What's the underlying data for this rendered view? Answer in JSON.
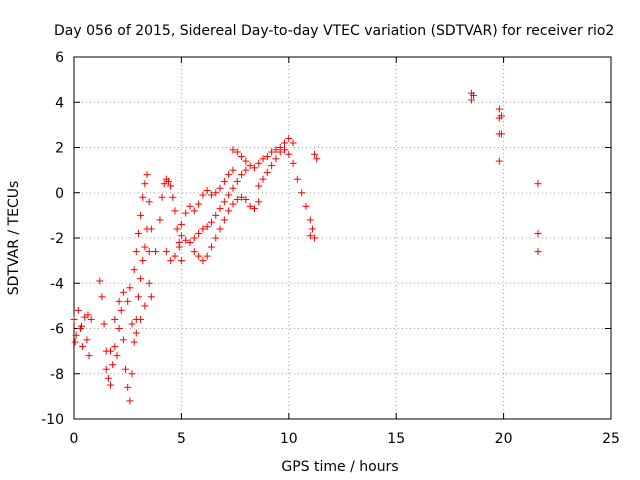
{
  "chart_data": {
    "type": "scatter",
    "title": "Day 056 of 2015, Sidereal Day-to-day VTEC variation (SDTVAR) for receiver rio2",
    "xlabel": "GPS time / hours",
    "ylabel": "SDTVAR / TECUs",
    "xlim": [
      0,
      25
    ],
    "ylim": [
      -10,
      6
    ],
    "xticks": [
      0,
      5,
      10,
      15,
      20,
      25
    ],
    "yticks": [
      -10,
      -8,
      -6,
      -4,
      -2,
      0,
      2,
      4,
      6
    ],
    "grid": true,
    "marker": "plus",
    "color": "#ff0000",
    "series": [
      {
        "name": "rio2",
        "points": [
          [
            0.0,
            -5.6
          ],
          [
            0.1,
            -6.3
          ],
          [
            0.2,
            -5.2
          ],
          [
            0.3,
            -6.0
          ],
          [
            0.4,
            -6.8
          ],
          [
            0.5,
            -5.5
          ],
          [
            0.6,
            -6.5
          ],
          [
            0.7,
            -7.2
          ],
          [
            0.8,
            -5.6
          ],
          [
            0.05,
            -6.6
          ],
          [
            0.35,
            -5.9
          ],
          [
            0.65,
            -5.4
          ],
          [
            1.2,
            -3.9
          ],
          [
            1.3,
            -4.6
          ],
          [
            1.4,
            -5.8
          ],
          [
            1.5,
            -7.0
          ],
          [
            1.6,
            -8.2
          ],
          [
            1.7,
            -8.5
          ],
          [
            1.8,
            -7.6
          ],
          [
            1.9,
            -6.8
          ],
          [
            2.0,
            -7.2
          ],
          [
            2.1,
            -6.0
          ],
          [
            2.2,
            -5.2
          ],
          [
            2.3,
            -6.5
          ],
          [
            2.4,
            -7.8
          ],
          [
            2.5,
            -8.6
          ],
          [
            2.6,
            -9.2
          ],
          [
            2.7,
            -8.0
          ],
          [
            2.8,
            -6.6
          ],
          [
            2.9,
            -5.6
          ],
          [
            3.0,
            -4.6
          ],
          [
            3.1,
            -3.8
          ],
          [
            3.2,
            -3.0
          ],
          [
            3.3,
            -2.4
          ],
          [
            3.4,
            -1.6
          ],
          [
            3.5,
            -2.6
          ],
          [
            3.6,
            -4.6
          ],
          [
            1.5,
            -7.8
          ],
          [
            1.7,
            -7.0
          ],
          [
            1.9,
            -5.6
          ],
          [
            2.1,
            -4.8
          ],
          [
            2.3,
            -4.4
          ],
          [
            2.5,
            -4.8
          ],
          [
            2.7,
            -5.8
          ],
          [
            2.9,
            -6.2
          ],
          [
            3.1,
            -5.6
          ],
          [
            3.3,
            -5.0
          ],
          [
            3.5,
            -4.0
          ],
          [
            2.6,
            -4.2
          ],
          [
            2.8,
            -3.4
          ],
          [
            2.9,
            -2.6
          ],
          [
            3.0,
            -1.8
          ],
          [
            3.1,
            -1.0
          ],
          [
            3.2,
            -0.2
          ],
          [
            3.3,
            0.4
          ],
          [
            3.4,
            0.8
          ],
          [
            3.5,
            -0.4
          ],
          [
            3.6,
            -1.6
          ],
          [
            3.8,
            -2.6
          ],
          [
            4.0,
            -1.2
          ],
          [
            4.1,
            -0.2
          ],
          [
            4.2,
            0.4
          ],
          [
            4.3,
            0.6
          ],
          [
            4.4,
            0.5
          ],
          [
            4.5,
            0.3
          ],
          [
            4.6,
            -0.2
          ],
          [
            4.7,
            -0.8
          ],
          [
            4.8,
            -1.6
          ],
          [
            4.9,
            -2.4
          ],
          [
            5.0,
            -3.0
          ],
          [
            4.3,
            -2.6
          ],
          [
            4.5,
            -3.0
          ],
          [
            4.7,
            -2.8
          ],
          [
            4.9,
            -2.2
          ],
          [
            5.0,
            -1.4
          ],
          [
            5.2,
            -0.9
          ],
          [
            5.4,
            -0.6
          ],
          [
            5.6,
            -0.8
          ],
          [
            5.8,
            -0.5
          ],
          [
            6.0,
            -0.1
          ],
          [
            6.2,
            0.1
          ],
          [
            6.4,
            -0.1
          ],
          [
            6.6,
            0.0
          ],
          [
            6.8,
            0.2
          ],
          [
            7.0,
            0.5
          ],
          [
            7.2,
            0.8
          ],
          [
            7.4,
            1.0
          ],
          [
            5.0,
            -1.9
          ],
          [
            5.2,
            -2.1
          ],
          [
            5.4,
            -2.2
          ],
          [
            5.6,
            -2.0
          ],
          [
            5.8,
            -1.8
          ],
          [
            6.0,
            -1.6
          ],
          [
            6.2,
            -1.5
          ],
          [
            6.4,
            -1.3
          ],
          [
            6.6,
            -1.0
          ],
          [
            6.8,
            -0.7
          ],
          [
            7.0,
            -0.4
          ],
          [
            7.2,
            -0.1
          ],
          [
            7.4,
            0.2
          ],
          [
            7.6,
            0.5
          ],
          [
            7.8,
            0.8
          ],
          [
            8.0,
            1.0
          ],
          [
            5.6,
            -2.6
          ],
          [
            5.8,
            -2.8
          ],
          [
            6.0,
            -3.0
          ],
          [
            6.2,
            -2.8
          ],
          [
            6.4,
            -2.4
          ],
          [
            6.6,
            -2.0
          ],
          [
            6.8,
            -1.6
          ],
          [
            7.0,
            -1.2
          ],
          [
            7.2,
            -0.8
          ],
          [
            7.4,
            -0.5
          ],
          [
            7.6,
            -0.3
          ],
          [
            7.8,
            -0.2
          ],
          [
            8.0,
            -0.3
          ],
          [
            8.2,
            -0.6
          ],
          [
            8.4,
            -0.7
          ],
          [
            8.6,
            -0.4
          ],
          [
            7.4,
            1.9
          ],
          [
            7.6,
            1.8
          ],
          [
            7.8,
            1.6
          ],
          [
            8.0,
            1.4
          ],
          [
            8.2,
            1.2
          ],
          [
            8.4,
            1.1
          ],
          [
            8.6,
            1.3
          ],
          [
            8.8,
            1.5
          ],
          [
            9.0,
            1.6
          ],
          [
            9.2,
            1.8
          ],
          [
            9.4,
            1.9
          ],
          [
            9.6,
            2.0
          ],
          [
            9.8,
            2.2
          ],
          [
            10.0,
            2.4
          ],
          [
            10.2,
            2.2
          ],
          [
            8.6,
            0.3
          ],
          [
            8.8,
            0.6
          ],
          [
            9.0,
            0.9
          ],
          [
            9.2,
            1.2
          ],
          [
            9.4,
            1.5
          ],
          [
            9.6,
            1.8
          ],
          [
            9.8,
            1.9
          ],
          [
            10.0,
            1.7
          ],
          [
            10.2,
            1.3
          ],
          [
            10.4,
            0.6
          ],
          [
            10.6,
            0.0
          ],
          [
            10.8,
            -0.6
          ],
          [
            11.0,
            -1.2
          ],
          [
            11.2,
            -2.0
          ],
          [
            11.1,
            -1.6
          ],
          [
            11.0,
            -1.9
          ],
          [
            11.2,
            1.7
          ],
          [
            11.3,
            1.5
          ],
          [
            18.5,
            4.4
          ],
          [
            18.5,
            4.1
          ],
          [
            18.6,
            4.3
          ],
          [
            19.8,
            3.7
          ],
          [
            19.8,
            3.3
          ],
          [
            19.9,
            3.4
          ],
          [
            19.8,
            2.6
          ],
          [
            19.9,
            2.6
          ],
          [
            19.8,
            1.4
          ],
          [
            21.6,
            0.4
          ],
          [
            21.6,
            -1.8
          ],
          [
            21.6,
            -2.6
          ]
        ]
      }
    ]
  }
}
